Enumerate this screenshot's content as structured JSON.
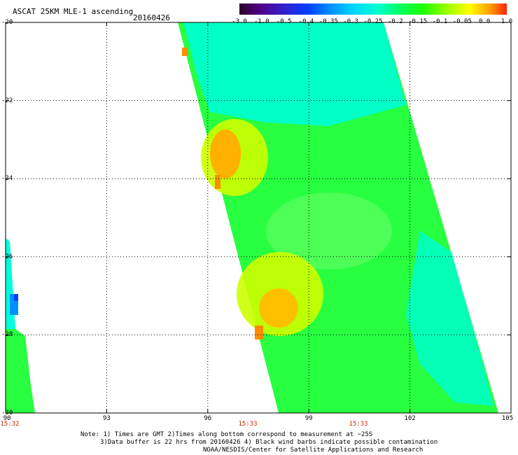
{
  "header": {
    "title": "ASCAT 25KM MLE-1 ascending",
    "date": "20160426"
  },
  "colorbar": {
    "labels": [
      "-3.0",
      "-1.0",
      "-0.5",
      "-0.4",
      "-0.35",
      "-0.3",
      "-0.25",
      "-0.2",
      "-0.15",
      "-0.1",
      "-0.05",
      "0.0",
      "1.0"
    ],
    "colors": [
      "#2a0028",
      "#50008a",
      "#3020d0",
      "#0040ff",
      "#0090ff",
      "#00d8ff",
      "#00ffcc",
      "#00ff60",
      "#20ff00",
      "#a0ff00",
      "#ffff00",
      "#ff9a00",
      "#ff2000"
    ]
  },
  "map": {
    "lat_labels": [
      "-20",
      "-22",
      "-24",
      "-26",
      "-28",
      "-30"
    ],
    "lon_labels": [
      "90",
      "93",
      "96",
      "99",
      "102",
      "105"
    ],
    "times": [
      "15:32",
      "15:33",
      "15:33"
    ],
    "lat_range": [
      -30,
      -20
    ],
    "lon_range": [
      90,
      105
    ],
    "grid": "dotted"
  },
  "notes": {
    "line1": "Note: 1) Times are GMT 2)Times along bottom correspond to measurement at ~25S",
    "line2": "3)Data buffer is 22 hrs from 20160426 4) Black wind barbs indicate possible contamination",
    "line3": "NOAA/NESDIS/Center for Satellite Applications and Research"
  }
}
